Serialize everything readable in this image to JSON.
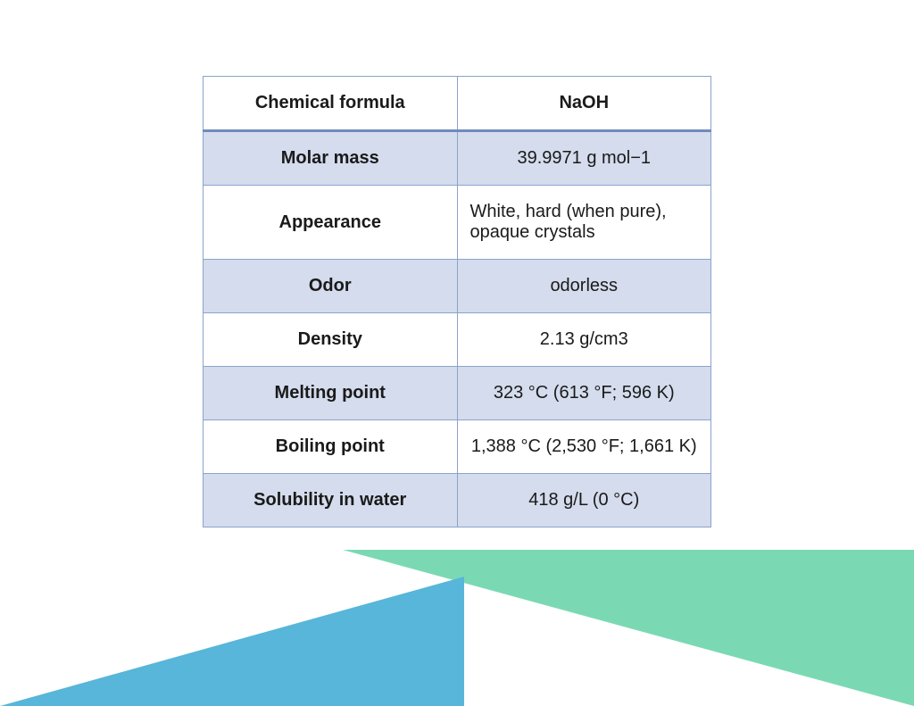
{
  "table": {
    "type": "table",
    "columns": [
      "property",
      "value"
    ],
    "header": {
      "property": "Chemical formula",
      "value": "NaOH"
    },
    "rows": [
      {
        "property": "Molar mass",
        "value": "39.9971 g mol−1",
        "bg": "even",
        "align": "center"
      },
      {
        "property": "Appearance",
        "value": "White, hard (when pure), opaque crystals",
        "bg": "odd",
        "align": "left"
      },
      {
        "property": "Odor",
        "value": "odorless",
        "bg": "even",
        "align": "center"
      },
      {
        "property": "Density",
        "value": "2.13 g/cm3",
        "bg": "odd",
        "align": "center"
      },
      {
        "property": "Melting point",
        "value": "323 °C (613 °F; 596 K)",
        "bg": "even",
        "align": "center"
      },
      {
        "property": "Boiling point",
        "value": "1,388 °C (2,530 °F; 1,661 K)",
        "bg": "odd",
        "align": "center"
      },
      {
        "property": "Solubility in water",
        "value": "418 g/L (0 °C)",
        "bg": "even",
        "align": "center"
      }
    ],
    "border_color": "#8aa4cc",
    "header_underline_color": "#6e8bbd",
    "row_colors": {
      "even": "#d4dced",
      "odd": "#ffffff"
    },
    "label_fontweight": "bold",
    "fontsize": 20,
    "text_color": "#1a1a1a"
  },
  "decor": {
    "left_triangle_color": "#57b6d9",
    "right_triangle_color": "#7ad9b3",
    "background_color": "#ffffff"
  }
}
